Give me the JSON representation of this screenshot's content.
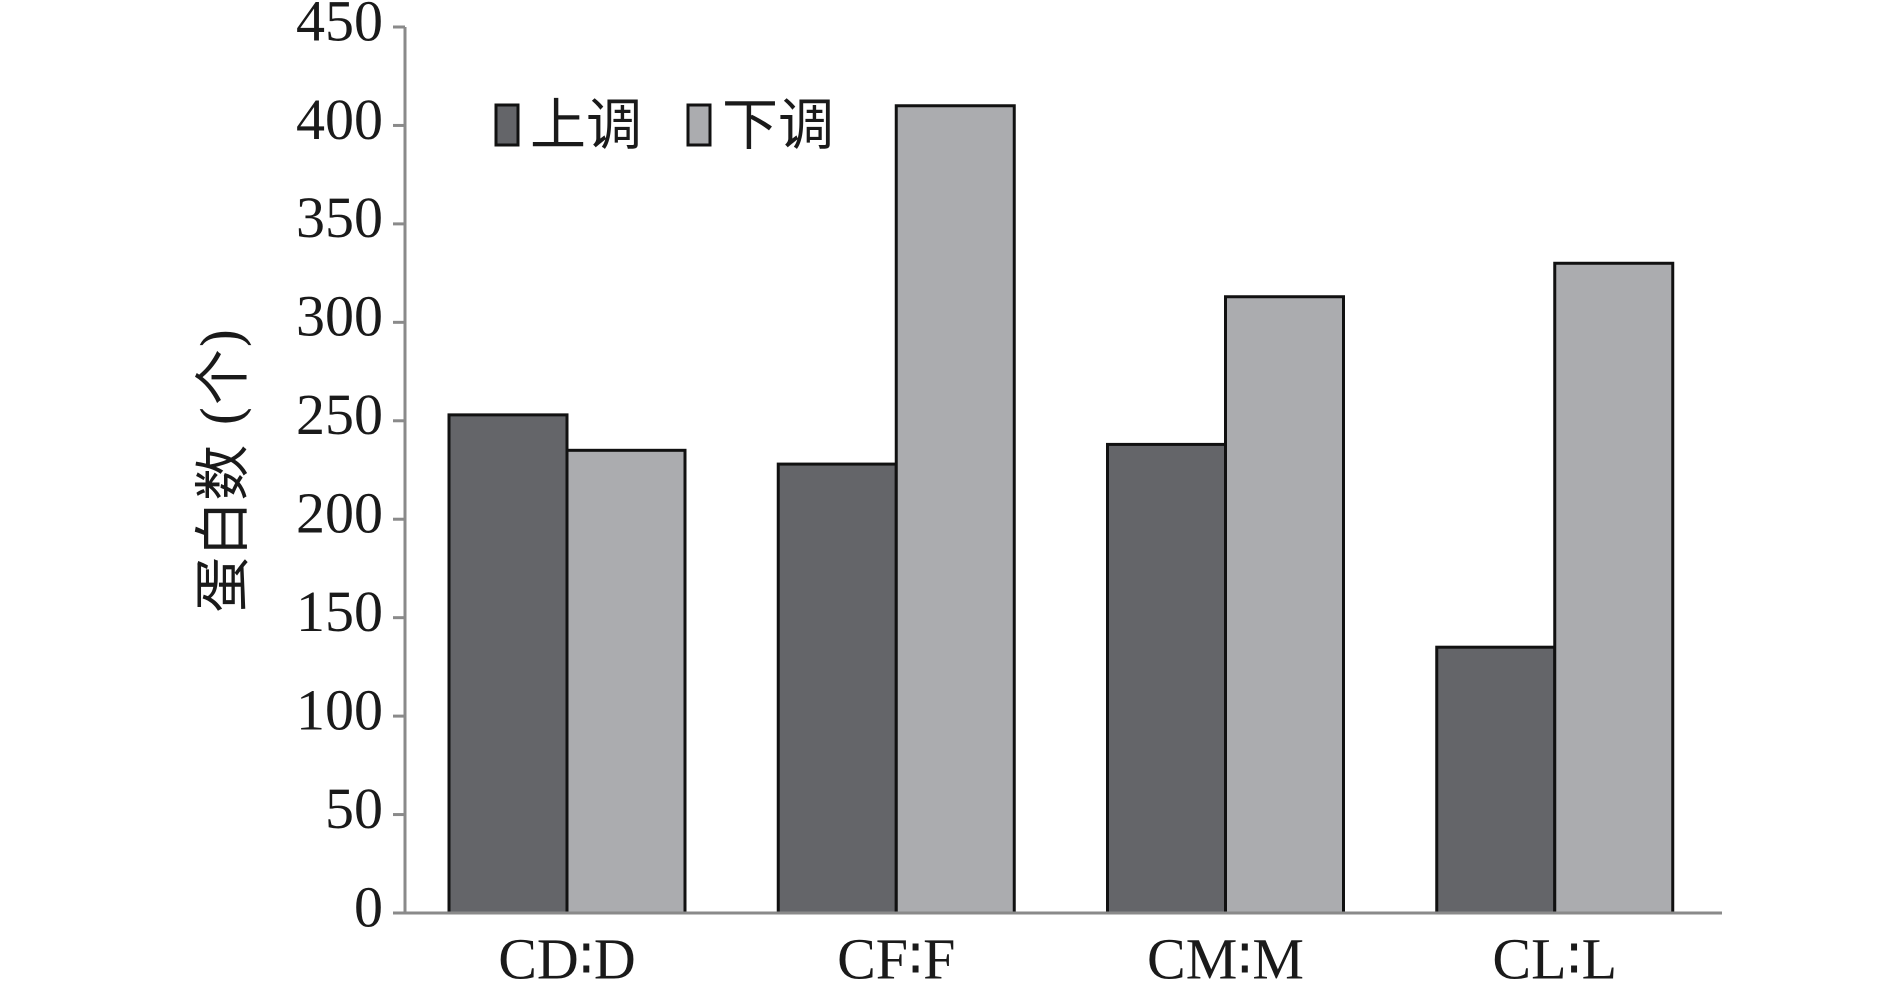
{
  "chart_data": {
    "type": "bar",
    "title": "",
    "xlabel": "",
    "ylabel": "蛋白数 (个)",
    "ylim": [
      0,
      450
    ],
    "yticks": [
      0,
      50,
      100,
      150,
      200,
      250,
      300,
      350,
      400,
      450
    ],
    "ytick_labels": [
      "0",
      "50",
      "100",
      "150",
      "200",
      "250",
      "300",
      "350",
      "400",
      "450"
    ],
    "categories": [
      "CD∶D",
      "CF∶F",
      "CM∶M",
      "CL∶L"
    ],
    "series": [
      {
        "name": "上调",
        "values": [
          253,
          228,
          238,
          135
        ],
        "color": "#646569"
      },
      {
        "name": "下调",
        "values": [
          235,
          410,
          313,
          330
        ],
        "color": "#abacaf"
      }
    ],
    "grid": false,
    "legend": {
      "position": "top-left"
    }
  }
}
